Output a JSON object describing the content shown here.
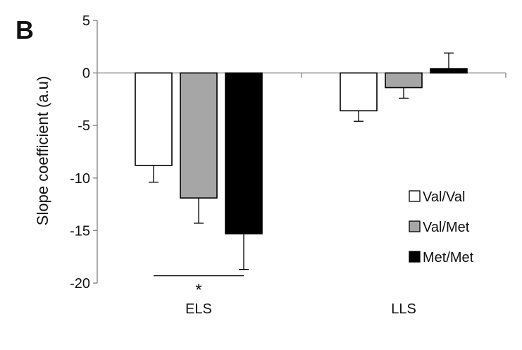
{
  "panel_label": "B",
  "chart_data": {
    "type": "bar",
    "categories": [
      "ELS",
      "LLS"
    ],
    "series": [
      {
        "name": "Val/Val",
        "color": "#ffffff",
        "values": [
          -8.8,
          -3.6
        ],
        "error": [
          1.6,
          1.0
        ]
      },
      {
        "name": "Val/Met",
        "color": "#a6a6a6",
        "values": [
          -11.9,
          -1.4
        ],
        "error": [
          2.4,
          1.0
        ]
      },
      {
        "name": "Met/Met",
        "color": "#000000",
        "values": [
          -15.3,
          0.4
        ],
        "error": [
          3.4,
          1.5
        ]
      }
    ],
    "ylabel": "Slope coefficient (a.u)",
    "ylim": [
      -20,
      5
    ],
    "yticks": [
      5,
      0,
      -5,
      -10,
      -15,
      -20
    ],
    "error_direction": "away-from-zero",
    "legend_position": "right",
    "annotations": [
      {
        "text": "*",
        "category": "ELS",
        "spans": [
          "Val/Val",
          "Met/Met"
        ]
      }
    ]
  }
}
